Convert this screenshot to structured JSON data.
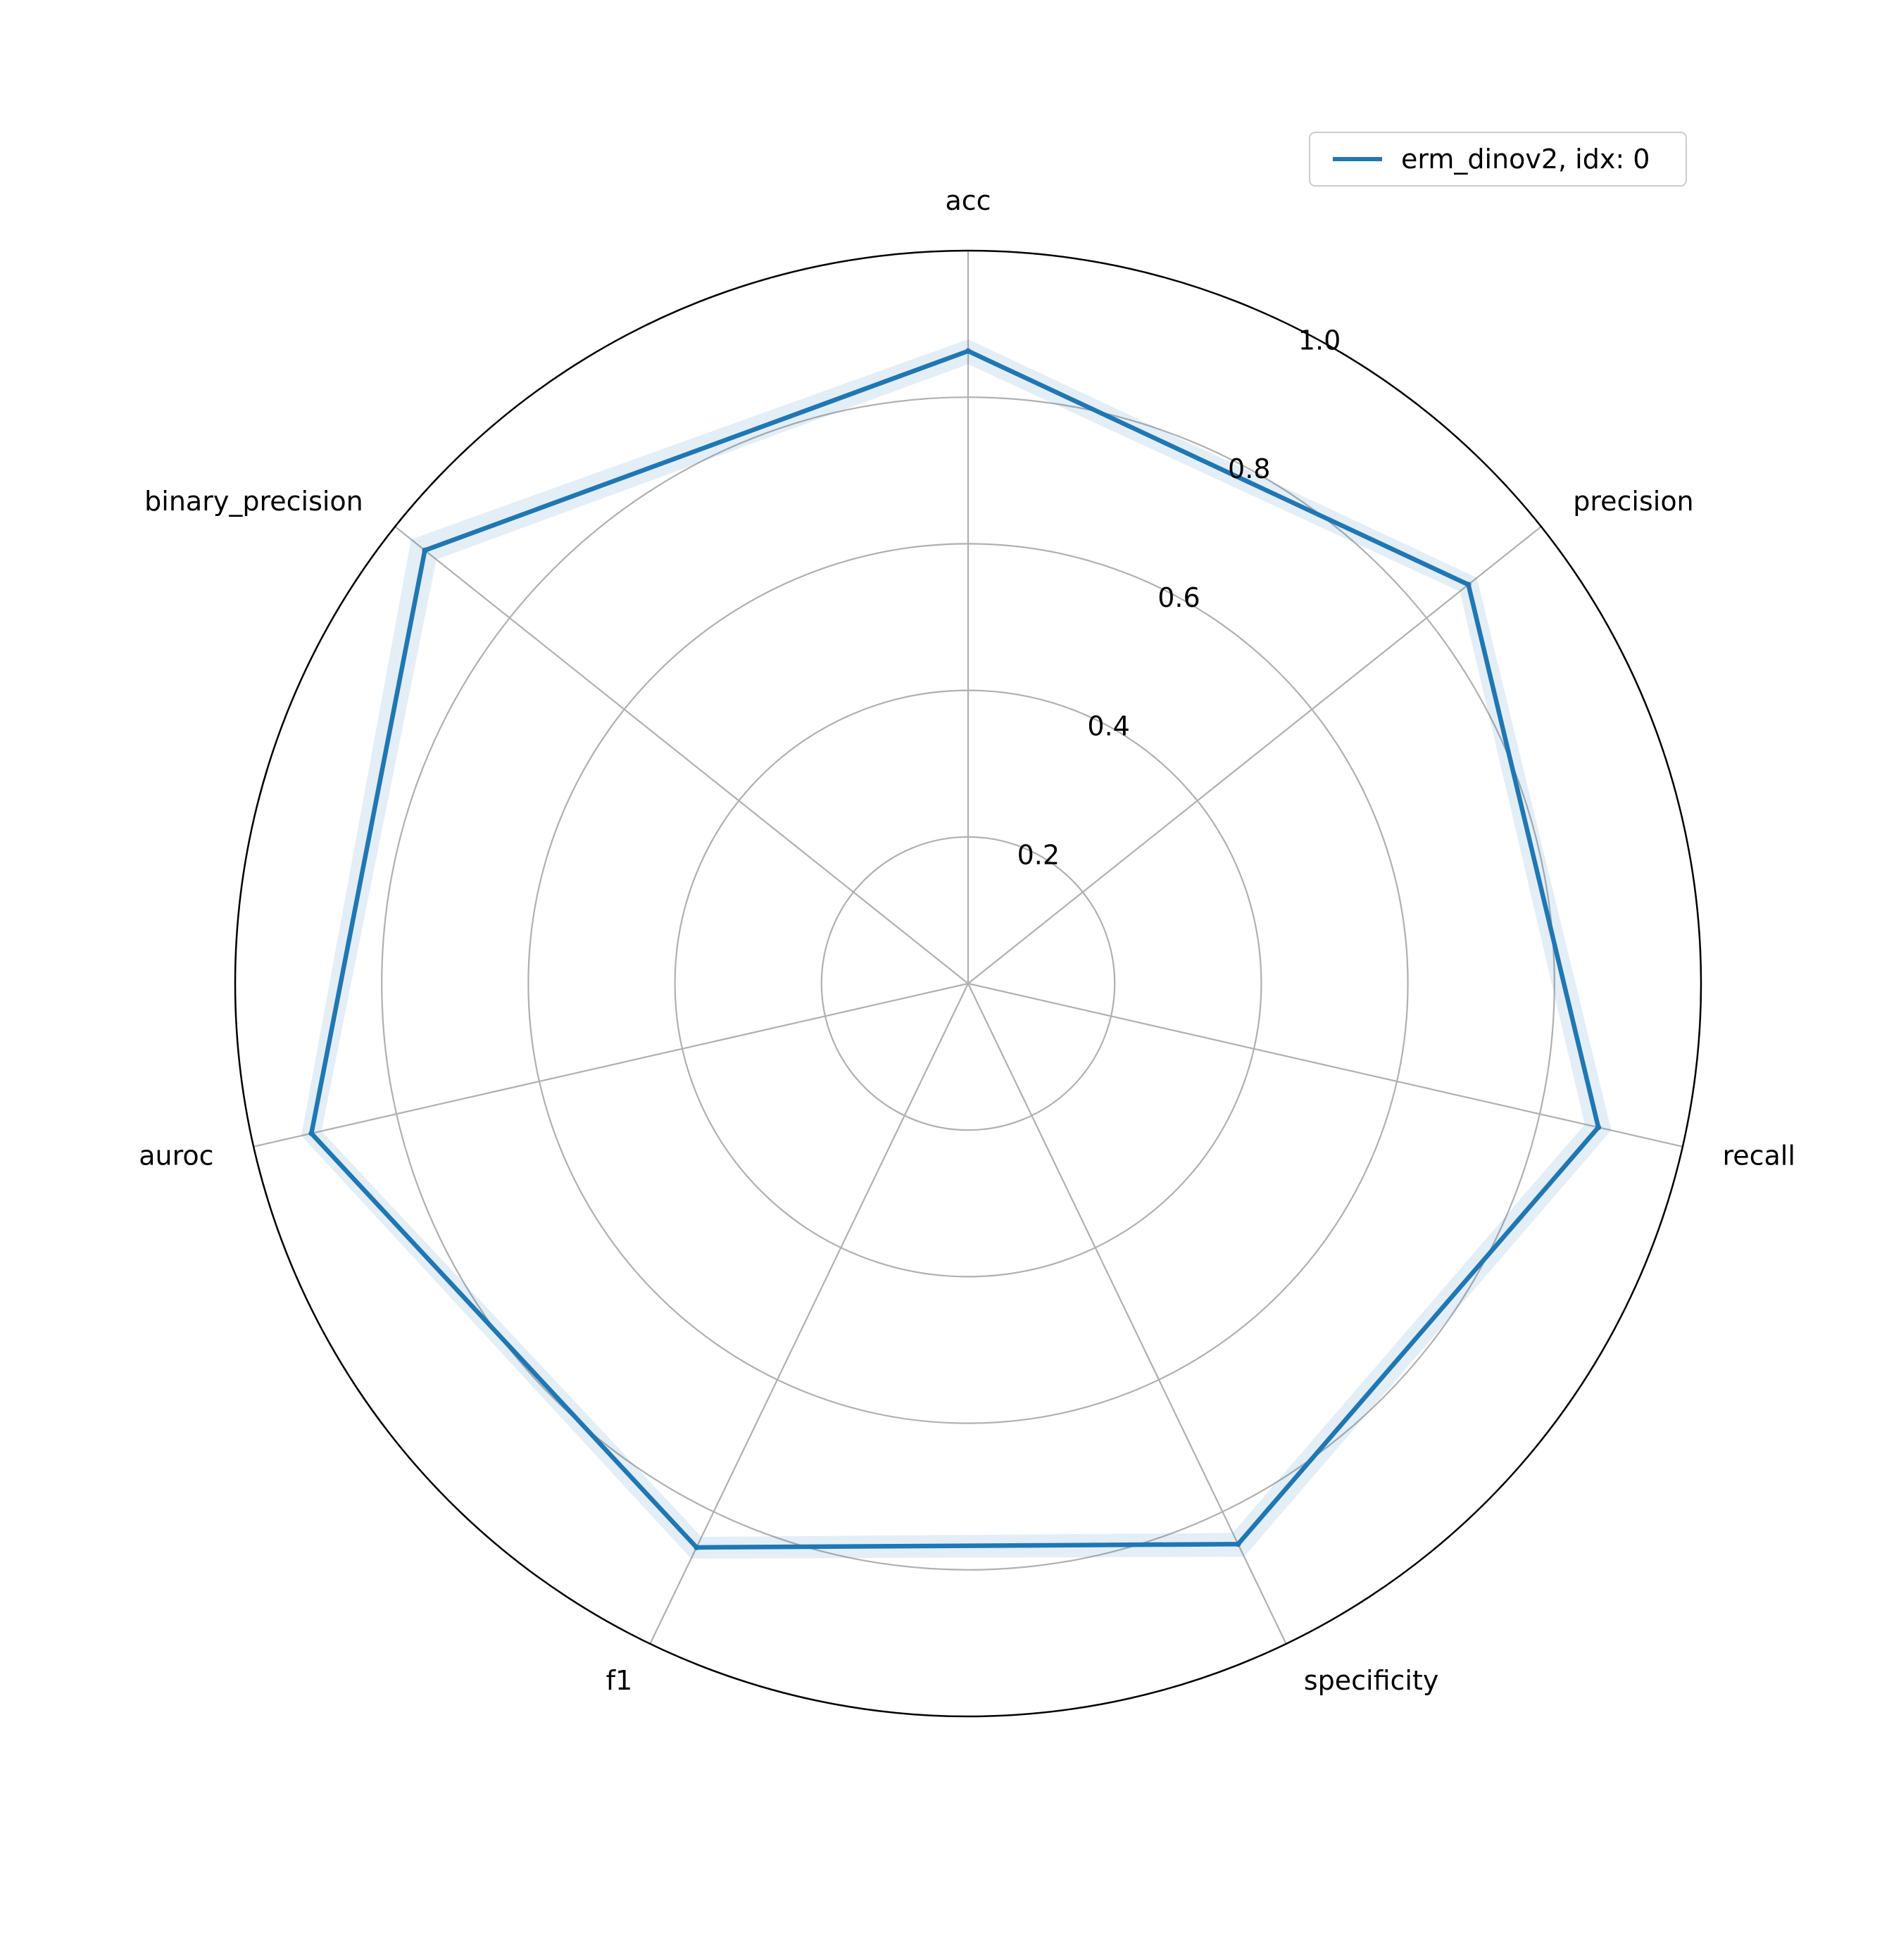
{
  "chart_data": {
    "type": "radar",
    "axes": [
      "acc",
      "precision",
      "recall",
      "specificity",
      "f1",
      "auroc",
      "binary_precision"
    ],
    "r_ticks": [
      0.2,
      0.4,
      0.6,
      0.8,
      1.0
    ],
    "r_tick_labels": [
      "0.2",
      "0.4",
      "0.6",
      "0.8",
      "1.0"
    ],
    "rlim": [
      0,
      1.0
    ],
    "grid": true,
    "legend_position": "top-right",
    "series": [
      {
        "name": "erm_dinov2, idx: 0",
        "color": "#1f77b4",
        "values": [
          0.863,
          0.873,
          0.882,
          0.849,
          0.854,
          0.919,
          0.948
        ],
        "lower": [
          0.845,
          0.858,
          0.863,
          0.832,
          0.838,
          0.905,
          0.928
        ],
        "upper": [
          0.879,
          0.888,
          0.9,
          0.868,
          0.871,
          0.933,
          0.972
        ]
      }
    ]
  }
}
